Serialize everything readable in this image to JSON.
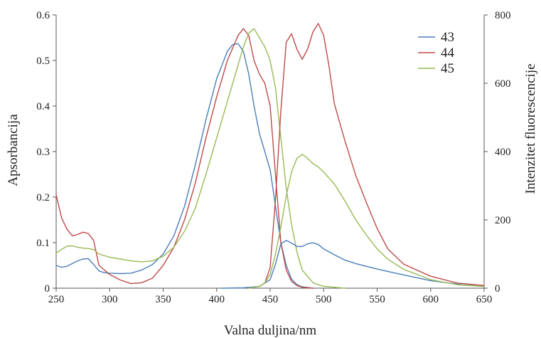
{
  "chart_data": {
    "type": "line",
    "xlabel": "Valna duljina/nm",
    "ylabel": "Apsorbancija",
    "y2label": "Intenzitet fluorescencije",
    "xlim": [
      250,
      650
    ],
    "ylim": [
      0,
      0.6
    ],
    "y2lim": [
      0,
      800
    ],
    "xticks": [
      "250",
      "300",
      "350",
      "400",
      "450",
      "500",
      "550",
      "600",
      "650"
    ],
    "yticks": [
      "0",
      "0.1",
      "0.2",
      "0.3",
      "0.4",
      "0.5",
      "0.6"
    ],
    "y2ticks": [
      "0",
      "200",
      "400",
      "600",
      "800"
    ],
    "grid": false,
    "legend_position": "top-right",
    "legend": [
      {
        "label": "43",
        "color": "#4a7ebb"
      },
      {
        "label": "44",
        "color": "#be4b48"
      },
      {
        "label": "45",
        "color": "#98b954"
      }
    ],
    "series": [
      {
        "name": "43",
        "kind": "absorbance",
        "axis": "left",
        "color": "#4a7ebb",
        "x": [
          250,
          255,
          260,
          265,
          270,
          275,
          280,
          285,
          290,
          295,
          300,
          310,
          320,
          330,
          340,
          350,
          360,
          370,
          380,
          390,
          400,
          410,
          415,
          420,
          425,
          430,
          435,
          440,
          445,
          450,
          455,
          460,
          465,
          470,
          475,
          480,
          490
        ],
        "y": [
          0.05,
          0.046,
          0.048,
          0.054,
          0.06,
          0.064,
          0.065,
          0.052,
          0.038,
          0.034,
          0.033,
          0.032,
          0.033,
          0.04,
          0.052,
          0.075,
          0.115,
          0.18,
          0.27,
          0.37,
          0.46,
          0.52,
          0.535,
          0.537,
          0.52,
          0.47,
          0.4,
          0.34,
          0.3,
          0.26,
          0.18,
          0.1,
          0.05,
          0.02,
          0.008,
          0.003,
          0.0
        ]
      },
      {
        "name": "44",
        "kind": "absorbance",
        "axis": "left",
        "color": "#be4b48",
        "x": [
          250,
          255,
          260,
          265,
          270,
          275,
          280,
          285,
          290,
          300,
          310,
          320,
          330,
          340,
          350,
          360,
          370,
          380,
          390,
          400,
          410,
          420,
          425,
          430,
          435,
          440,
          445,
          450,
          455,
          460,
          465,
          470,
          475,
          480,
          490
        ],
        "y": [
          0.205,
          0.155,
          0.13,
          0.115,
          0.118,
          0.123,
          0.12,
          0.105,
          0.05,
          0.03,
          0.018,
          0.01,
          0.012,
          0.022,
          0.05,
          0.09,
          0.15,
          0.23,
          0.33,
          0.42,
          0.5,
          0.555,
          0.57,
          0.555,
          0.5,
          0.47,
          0.45,
          0.4,
          0.25,
          0.1,
          0.04,
          0.015,
          0.006,
          0.002,
          0.0
        ]
      },
      {
        "name": "45",
        "kind": "absorbance",
        "axis": "left",
        "color": "#98b954",
        "x": [
          250,
          255,
          260,
          265,
          270,
          275,
          280,
          285,
          290,
          300,
          310,
          320,
          330,
          340,
          350,
          360,
          370,
          380,
          390,
          400,
          410,
          420,
          425,
          430,
          435,
          440,
          445,
          450,
          455,
          460,
          465,
          470,
          475,
          480,
          490,
          500,
          520
        ],
        "y": [
          0.077,
          0.085,
          0.092,
          0.093,
          0.09,
          0.088,
          0.087,
          0.085,
          0.075,
          0.068,
          0.064,
          0.06,
          0.058,
          0.06,
          0.07,
          0.09,
          0.125,
          0.175,
          0.25,
          0.33,
          0.41,
          0.49,
          0.53,
          0.56,
          0.57,
          0.55,
          0.53,
          0.5,
          0.44,
          0.33,
          0.22,
          0.14,
          0.08,
          0.04,
          0.012,
          0.004,
          0.0
        ]
      },
      {
        "name": "43",
        "kind": "fluorescence",
        "axis": "right",
        "color": "#4a7ebb",
        "x": [
          405,
          425,
          440,
          450,
          455,
          460,
          465,
          470,
          475,
          480,
          485,
          490,
          495,
          500,
          510,
          520,
          530,
          550,
          570,
          600,
          630,
          650
        ],
        "y": [
          0,
          1,
          5,
          25,
          70,
          130,
          140,
          132,
          122,
          122,
          130,
          133,
          128,
          115,
          98,
          82,
          72,
          56,
          42,
          22,
          10,
          5
        ]
      },
      {
        "name": "44",
        "kind": "fluorescence",
        "axis": "right",
        "color": "#be4b48",
        "x": [
          440,
          445,
          450,
          455,
          460,
          465,
          470,
          475,
          480,
          485,
          490,
          495,
          500,
          505,
          510,
          520,
          530,
          540,
          550,
          560,
          575,
          600,
          625,
          650
        ],
        "y": [
          5,
          15,
          60,
          260,
          520,
          720,
          745,
          700,
          670,
          700,
          750,
          775,
          740,
          650,
          540,
          430,
          330,
          250,
          175,
          115,
          70,
          35,
          15,
          8
        ]
      },
      {
        "name": "45",
        "kind": "fluorescence",
        "axis": "right",
        "color": "#98b954",
        "x": [
          430,
          440,
          445,
          450,
          455,
          460,
          465,
          470,
          475,
          480,
          485,
          490,
          495,
          500,
          510,
          520,
          530,
          540,
          550,
          560,
          575,
          600,
          625,
          650
        ],
        "y": [
          0,
          5,
          15,
          40,
          100,
          180,
          270,
          340,
          380,
          392,
          380,
          365,
          355,
          340,
          305,
          255,
          200,
          155,
          115,
          85,
          55,
          25,
          10,
          5
        ]
      }
    ]
  }
}
